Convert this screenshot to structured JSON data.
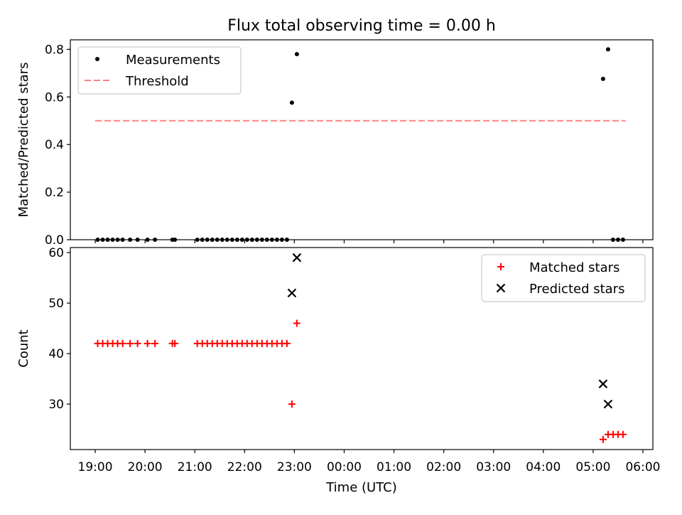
{
  "figure": {
    "title": "Flux total observing time = 0.00 h",
    "xlabel": "Time (UTC)",
    "x_tick_labels": [
      "19:00",
      "20:00",
      "21:00",
      "22:00",
      "23:00",
      "00:00",
      "01:00",
      "02:00",
      "03:00",
      "04:00",
      "05:00",
      "06:00"
    ]
  },
  "chart_data": [
    {
      "type": "scatter",
      "ylabel": "Matched/Predicted stars",
      "xlim_hours": [
        18.5,
        30.2
      ],
      "ylim": [
        0,
        0.84
      ],
      "y_ticks": [
        0.0,
        0.2,
        0.4,
        0.6,
        0.8
      ],
      "y_tick_labels": [
        "0.0",
        "0.2",
        "0.4",
        "0.6",
        "0.8"
      ],
      "legend": {
        "position": "upper-left",
        "entries": [
          {
            "label": "Measurements",
            "marker": "dot",
            "color": "#000000"
          },
          {
            "label": "Threshold",
            "marker": "dashed-line",
            "color": "#ff8080"
          }
        ]
      },
      "threshold": {
        "value": 0.5,
        "x_start_hours": 19.0,
        "x_end_hours": 29.65,
        "color": "#ff8080"
      },
      "series": [
        {
          "name": "Measurements",
          "color": "#000000",
          "x_hours": [
            19.05,
            19.15,
            19.25,
            19.35,
            19.45,
            19.55,
            19.7,
            19.85,
            20.05,
            20.2,
            20.55,
            20.6,
            21.05,
            21.15,
            21.25,
            21.35,
            21.45,
            21.55,
            21.65,
            21.75,
            21.85,
            21.95,
            22.05,
            22.15,
            22.25,
            22.35,
            22.45,
            22.55,
            22.65,
            22.75,
            22.85,
            22.95,
            23.05,
            29.2,
            29.3,
            29.4,
            29.5,
            29.6
          ],
          "y": [
            0,
            0,
            0,
            0,
            0,
            0,
            0,
            0,
            0,
            0,
            0,
            0,
            0,
            0,
            0,
            0,
            0,
            0,
            0,
            0,
            0,
            0,
            0,
            0,
            0,
            0,
            0,
            0,
            0,
            0,
            0,
            0.576,
            0.78,
            0.676,
            0.8,
            0,
            0,
            0
          ]
        }
      ]
    },
    {
      "type": "scatter",
      "ylabel": "Count",
      "xlim_hours": [
        18.5,
        30.2
      ],
      "ylim": [
        21,
        61
      ],
      "y_ticks": [
        30,
        40,
        50,
        60
      ],
      "y_tick_labels": [
        "30",
        "40",
        "50",
        "60"
      ],
      "legend": {
        "position": "upper-right",
        "entries": [
          {
            "label": "Matched stars",
            "marker": "plus",
            "color": "#ff0000"
          },
          {
            "label": "Predicted stars",
            "marker": "x",
            "color": "#000000"
          }
        ]
      },
      "series": [
        {
          "name": "Matched stars",
          "marker": "plus",
          "color": "#ff0000",
          "x_hours": [
            19.05,
            19.15,
            19.25,
            19.35,
            19.45,
            19.55,
            19.7,
            19.85,
            20.05,
            20.2,
            20.55,
            20.6,
            21.05,
            21.15,
            21.25,
            21.35,
            21.45,
            21.55,
            21.65,
            21.75,
            21.85,
            21.95,
            22.05,
            22.15,
            22.25,
            22.35,
            22.45,
            22.55,
            22.65,
            22.75,
            22.85,
            22.95,
            23.05,
            29.2,
            29.3,
            29.4,
            29.5,
            29.6
          ],
          "y": [
            42,
            42,
            42,
            42,
            42,
            42,
            42,
            42,
            42,
            42,
            42,
            42,
            42,
            42,
            42,
            42,
            42,
            42,
            42,
            42,
            42,
            42,
            42,
            42,
            42,
            42,
            42,
            42,
            42,
            42,
            42,
            30,
            46,
            23,
            24,
            24,
            24,
            24
          ]
        },
        {
          "name": "Predicted stars",
          "marker": "x",
          "color": "#000000",
          "x_hours": [
            22.95,
            23.05,
            29.2,
            29.3
          ],
          "y": [
            52,
            59,
            34,
            30
          ]
        }
      ]
    }
  ]
}
